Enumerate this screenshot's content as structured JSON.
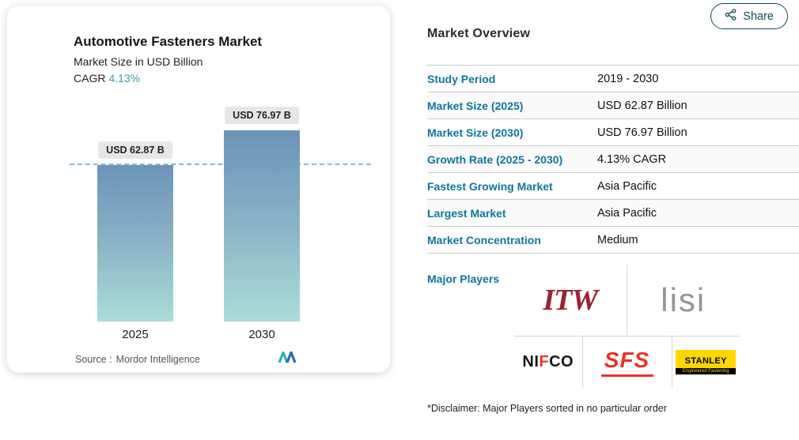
{
  "header": {
    "share_label": "Share"
  },
  "chart_card": {
    "title": "Automotive Fasteners Market",
    "subtitle": "Market Size in USD Billion",
    "cagr_label": "CAGR",
    "cagr_value": "4.13%",
    "source_label": "Source :",
    "source_name": "Mordor Intelligence"
  },
  "chart_data": {
    "type": "bar",
    "categories": [
      "2025",
      "2030"
    ],
    "values": [
      62.87,
      76.97
    ],
    "bar_labels": [
      "USD 62.87 B",
      "USD 76.97 B"
    ],
    "title": "Automotive Fasteners Market",
    "ylabel": "Market Size in USD Billion",
    "ylim": [
      0,
      80
    ],
    "reference_line_at": 62.87,
    "legend": "none",
    "grid": "off",
    "bar_gradient": [
      "#6b93b8",
      "#8ab4c6",
      "#abdcd8"
    ]
  },
  "overview": {
    "title": "Market Overview",
    "rows": [
      {
        "label": "Study Period",
        "value": "2019 - 2030"
      },
      {
        "label": "Market Size (2025)",
        "value": "USD 62.87 Billion"
      },
      {
        "label": "Market Size (2030)",
        "value": "USD 76.97 Billion"
      },
      {
        "label": "Growth Rate (2025 - 2030)",
        "value": "4.13% CAGR"
      },
      {
        "label": "Fastest Growing Market",
        "value": "Asia Pacific"
      },
      {
        "label": "Largest Market",
        "value": "Asia Pacific"
      },
      {
        "label": "Market Concentration",
        "value": "Medium"
      }
    ],
    "major_players_label": "Major Players",
    "players": [
      "ITW",
      "lisi",
      "NIFCO",
      "SFS",
      "STANLEY"
    ],
    "disclaimer": "*Disclaimer: Major Players sorted in no particular order"
  },
  "logos": {
    "itw": "ITW",
    "lisi": "lisi",
    "nifco_pre": "NI",
    "nifco_mid": "F",
    "nifco_post": "CO",
    "sfs": "SFS",
    "stanley": "STANLEY",
    "stanley_sub": "Engineered Fastening"
  },
  "colors": {
    "accent_link": "#0d76a0",
    "cagr_teal": "#35a3a6",
    "share_border": "#0d4b57",
    "refline_blue": "#8cb8da"
  }
}
